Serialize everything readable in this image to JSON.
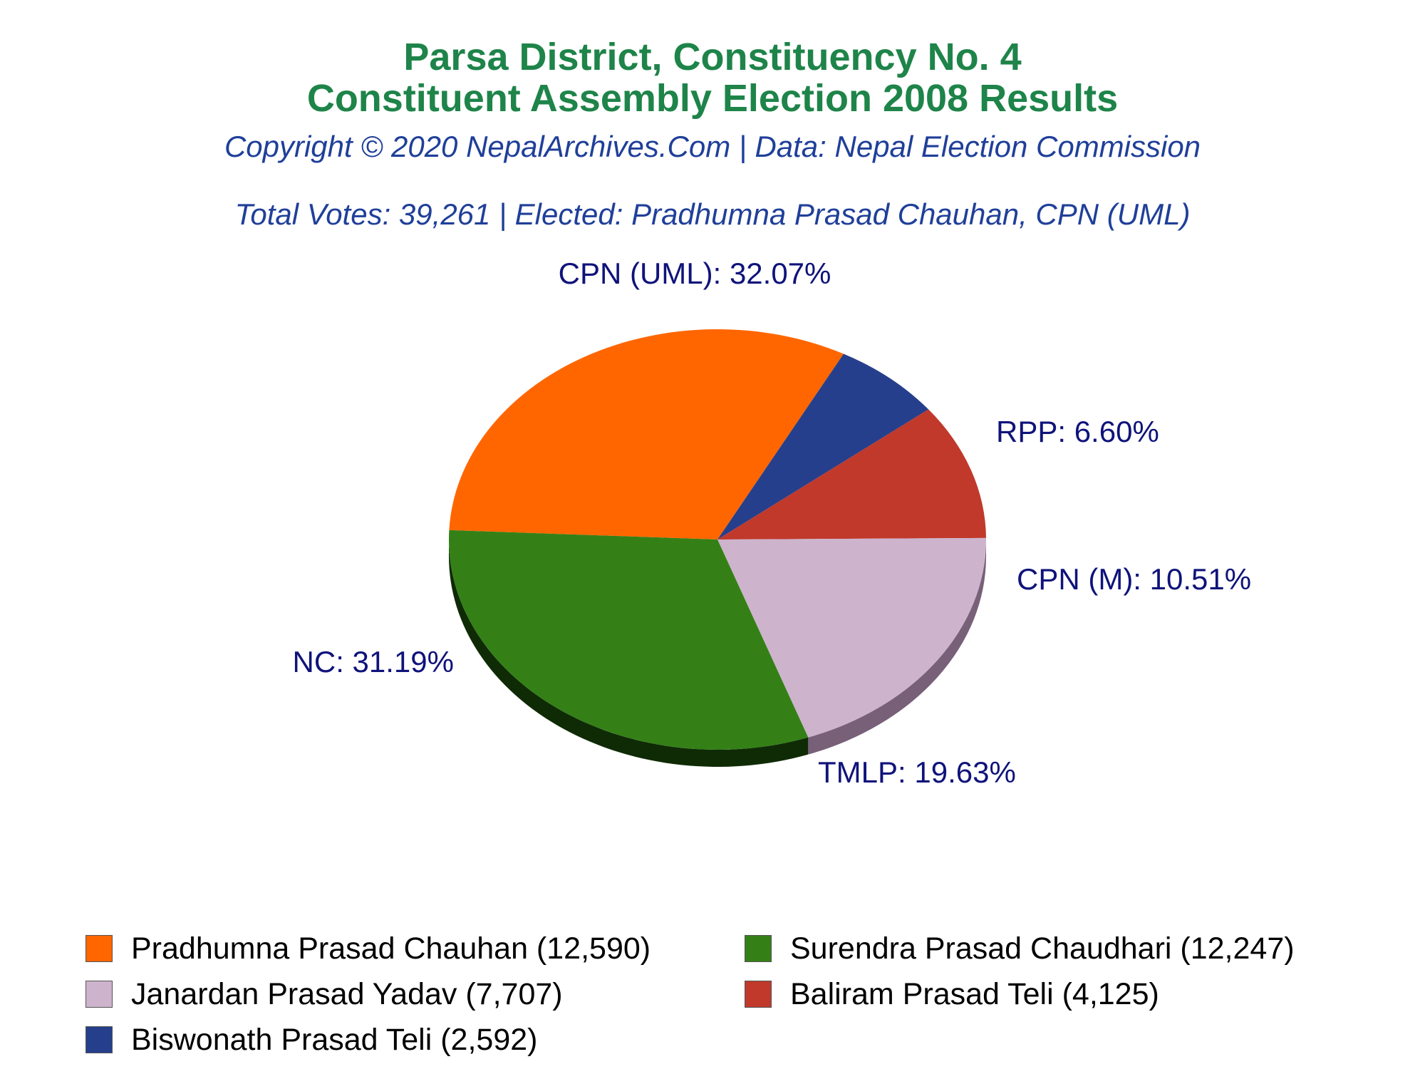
{
  "header": {
    "title_line1": "Parsa District, Constituency No. 4",
    "title_line2": "Constituent Assembly Election 2008 Results",
    "copyright": "Copyright © 2020 NepalArchives.Com | Data: Nepal Election Commission",
    "summary": "Total Votes: 39,261 | Elected: Pradhumna Prasad Chauhan, CPN (UML)"
  },
  "chart_data": {
    "type": "pie",
    "slices": [
      {
        "party": "CPN (UML)",
        "percent": 32.07,
        "label": "CPN (UML): 32.07%",
        "candidate": "Pradhumna Prasad Chauhan",
        "votes": 12590,
        "legend": "Pradhumna Prasad Chauhan (12,590)",
        "color": "#ff6600",
        "side_color": "#8a3700"
      },
      {
        "party": "RPP",
        "percent": 6.6,
        "label": "RPP: 6.60%",
        "candidate": "Biswonath Prasad Teli",
        "votes": 2592,
        "legend": "Biswonath Prasad Teli (2,592)",
        "color": "#263f8c",
        "side_color": "#101f4d"
      },
      {
        "party": "CPN (M)",
        "percent": 10.51,
        "label": "CPN (M): 10.51%",
        "candidate": "Baliram Prasad Teli",
        "votes": 4125,
        "legend": "Baliram Prasad Teli (4,125)",
        "color": "#c0392b",
        "side_color": "#6e0000"
      },
      {
        "party": "TMLP",
        "percent": 19.63,
        "label": "TMLP: 19.63%",
        "candidate": "Janardan Prasad Yadav",
        "votes": 7707,
        "legend": "Janardan Prasad Yadav (7,707)",
        "color": "#cdb4cc",
        "side_color": "#786079"
      },
      {
        "party": "NC",
        "percent": 31.19,
        "label": "NC: 31.19%",
        "candidate": "Surendra Prasad Chaudhari",
        "votes": 12247,
        "legend": "Surendra Prasad Chaudhari (12,247)",
        "color": "#348017",
        "side_color": "#0f2b05"
      }
    ],
    "legend_order": [
      0,
      4,
      3,
      2,
      1
    ],
    "label_color": "#0f137a"
  }
}
